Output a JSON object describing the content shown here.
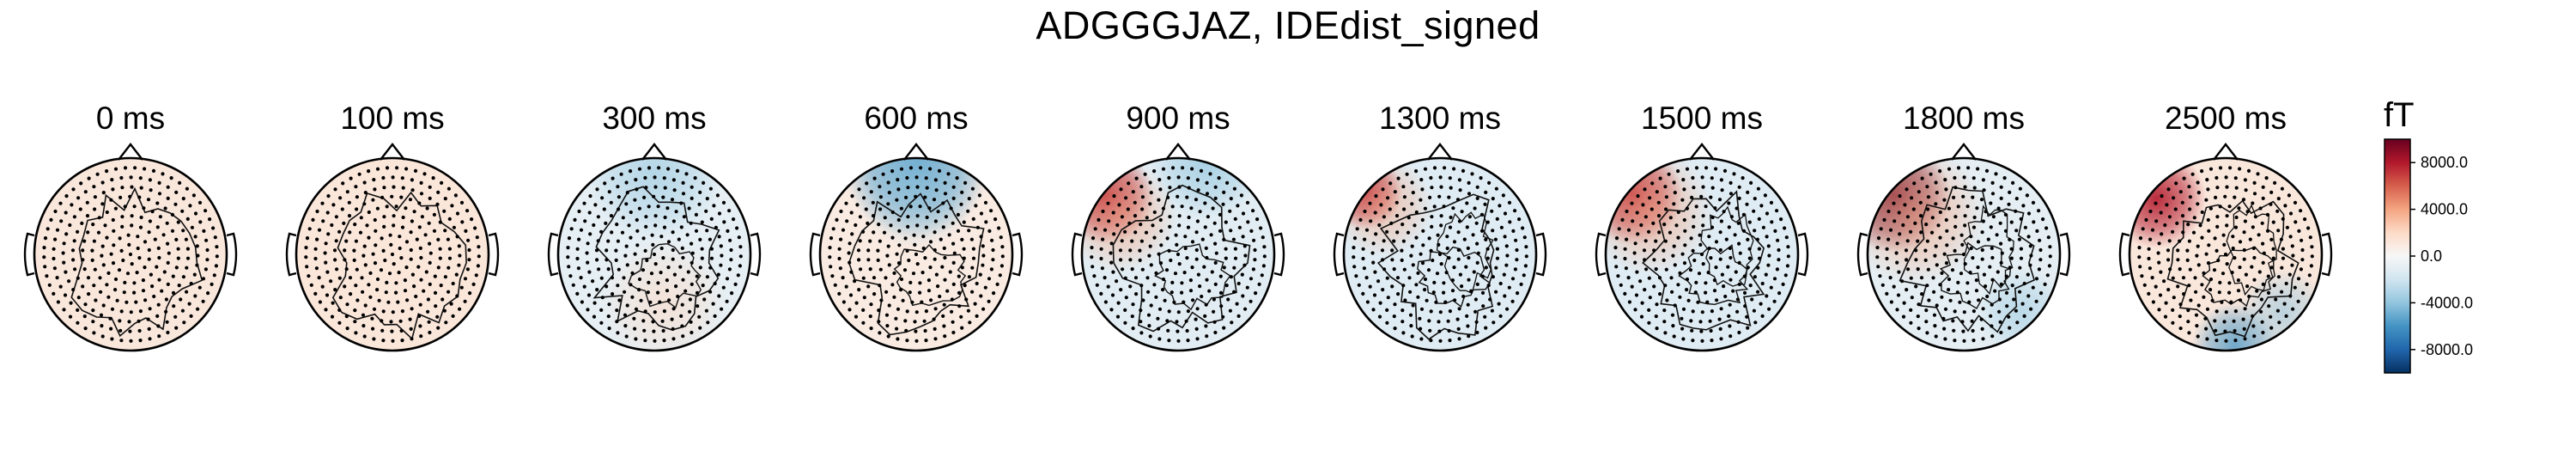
{
  "title": "ADGGGJAZ, IDEdist_signed",
  "colors": {
    "vmin": "#053061",
    "neg_strong": "#2166ac",
    "neg_mid": "#4393c3",
    "neg_light": "#92c5de",
    "neg_faint": "#d1e5f0",
    "zero": "#f7f7f7",
    "pos_faint": "#fddbc7",
    "pos_light": "#f4a582",
    "pos_mid": "#d6604d",
    "pos_strong": "#b2182b",
    "vmax": "#67001f",
    "head_outline": "#000000",
    "sensor": "#000000"
  },
  "chart_data": {
    "type": "heatmap",
    "subtype": "topomap-series",
    "title": "ADGGGJAZ, IDEdist_signed",
    "panels": [
      {
        "label": "0 ms",
        "time_ms": 0
      },
      {
        "label": "100 ms",
        "time_ms": 100
      },
      {
        "label": "300 ms",
        "time_ms": 300
      },
      {
        "label": "600 ms",
        "time_ms": 600
      },
      {
        "label": "900 ms",
        "time_ms": 900
      },
      {
        "label": "1300 ms",
        "time_ms": 1300
      },
      {
        "label": "1500 ms",
        "time_ms": 1500
      },
      {
        "label": "1800 ms",
        "time_ms": 1800
      },
      {
        "label": "2500 ms",
        "time_ms": 2500
      }
    ],
    "colorbar": {
      "unit": "fT",
      "colormap": "RdBu_r",
      "range": [
        -10000,
        10000
      ],
      "ticks": [
        8000,
        4000,
        0,
        -4000,
        -8000
      ],
      "tick_labels": [
        "8000.0",
        "4000.0",
        "0.0",
        "-4000.0",
        "-8000.0"
      ]
    }
  }
}
